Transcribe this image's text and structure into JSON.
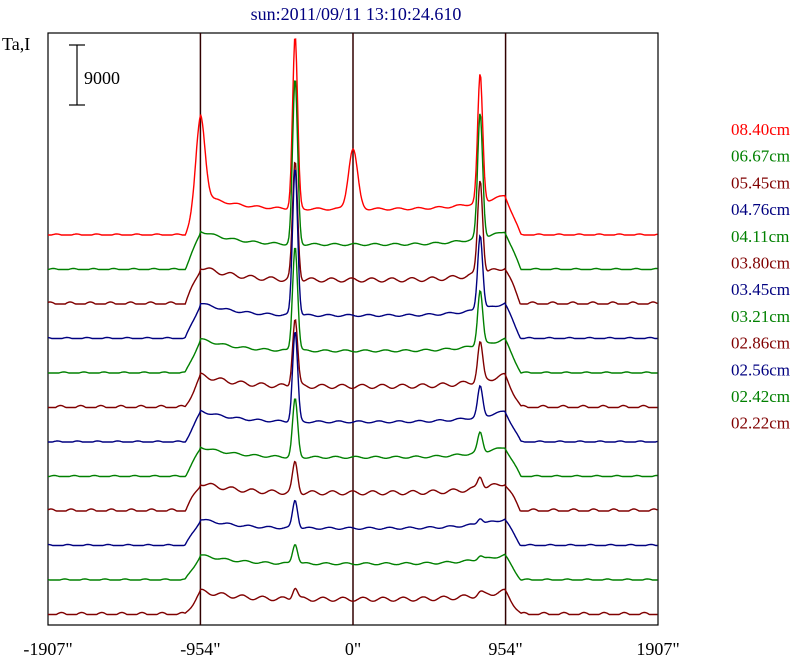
{
  "chart_data": {
    "type": "line",
    "title": "sun:2011/09/11 13:10:24.610",
    "ylabel": "Ta,I",
    "scale_bar_label": "9000",
    "x_ticks": [
      "-1907\"",
      "-954\"",
      "0\"",
      "954\"",
      "1907\""
    ],
    "x_tick_values": [
      -1907,
      -954,
      0,
      954,
      1907
    ],
    "xlim": [
      -1907,
      1907
    ],
    "vertical_markers": [
      -954,
      0,
      954
    ],
    "scale_bar_value": 9000,
    "series": [
      {
        "name": "08.40cm",
        "color": "#ff0000",
        "baseline": 0,
        "peaks": [
          {
            "x": -362,
            "amp": 172
          },
          {
            "x": 795,
            "amp": 128
          },
          {
            "x": -954,
            "amp": 80
          },
          {
            "x": 0,
            "amp": 60
          }
        ]
      },
      {
        "name": "06.67cm",
        "color": "#008000",
        "baseline": 0,
        "peaks": [
          {
            "x": -362,
            "amp": 165
          },
          {
            "x": 795,
            "amp": 125
          }
        ]
      },
      {
        "name": "05.45cm",
        "color": "#800000",
        "baseline": 0,
        "peaks": [
          {
            "x": -362,
            "amp": 118
          },
          {
            "x": 795,
            "amp": 95
          }
        ]
      },
      {
        "name": "04.76cm",
        "color": "#000080",
        "baseline": 0,
        "peaks": [
          {
            "x": -362,
            "amp": 148
          },
          {
            "x": 795,
            "amp": 75
          }
        ]
      },
      {
        "name": "04.11cm",
        "color": "#008000",
        "baseline": 0,
        "peaks": [
          {
            "x": -362,
            "amp": 105
          },
          {
            "x": 795,
            "amp": 55
          }
        ]
      },
      {
        "name": "03.80cm",
        "color": "#800000",
        "baseline": 0,
        "peaks": [
          {
            "x": -362,
            "amp": 68
          },
          {
            "x": 795,
            "amp": 38
          }
        ]
      },
      {
        "name": "03.45cm",
        "color": "#000080",
        "baseline": 0,
        "peaks": [
          {
            "x": -362,
            "amp": 90
          },
          {
            "x": 795,
            "amp": 30
          }
        ]
      },
      {
        "name": "03.21cm",
        "color": "#008000",
        "baseline": 0,
        "peaks": [
          {
            "x": -362,
            "amp": 58
          },
          {
            "x": 795,
            "amp": 20
          }
        ]
      },
      {
        "name": "02.86cm",
        "color": "#800000",
        "baseline": 0,
        "peaks": [
          {
            "x": -362,
            "amp": 30
          },
          {
            "x": 795,
            "amp": 12
          }
        ]
      },
      {
        "name": "02.56cm",
        "color": "#000080",
        "baseline": 0,
        "peaks": [
          {
            "x": -362,
            "amp": 28
          },
          {
            "x": 795,
            "amp": 6
          }
        ]
      },
      {
        "name": "02.42cm",
        "color": "#008000",
        "baseline": 0,
        "peaks": [
          {
            "x": -362,
            "amp": 20
          },
          {
            "x": 795,
            "amp": 4
          }
        ]
      },
      {
        "name": "02.22cm",
        "color": "#800000",
        "baseline": 0,
        "peaks": [
          {
            "x": -362,
            "amp": 12
          },
          {
            "x": 795,
            "amp": 3
          }
        ]
      }
    ],
    "grid": false,
    "legend": "right"
  }
}
